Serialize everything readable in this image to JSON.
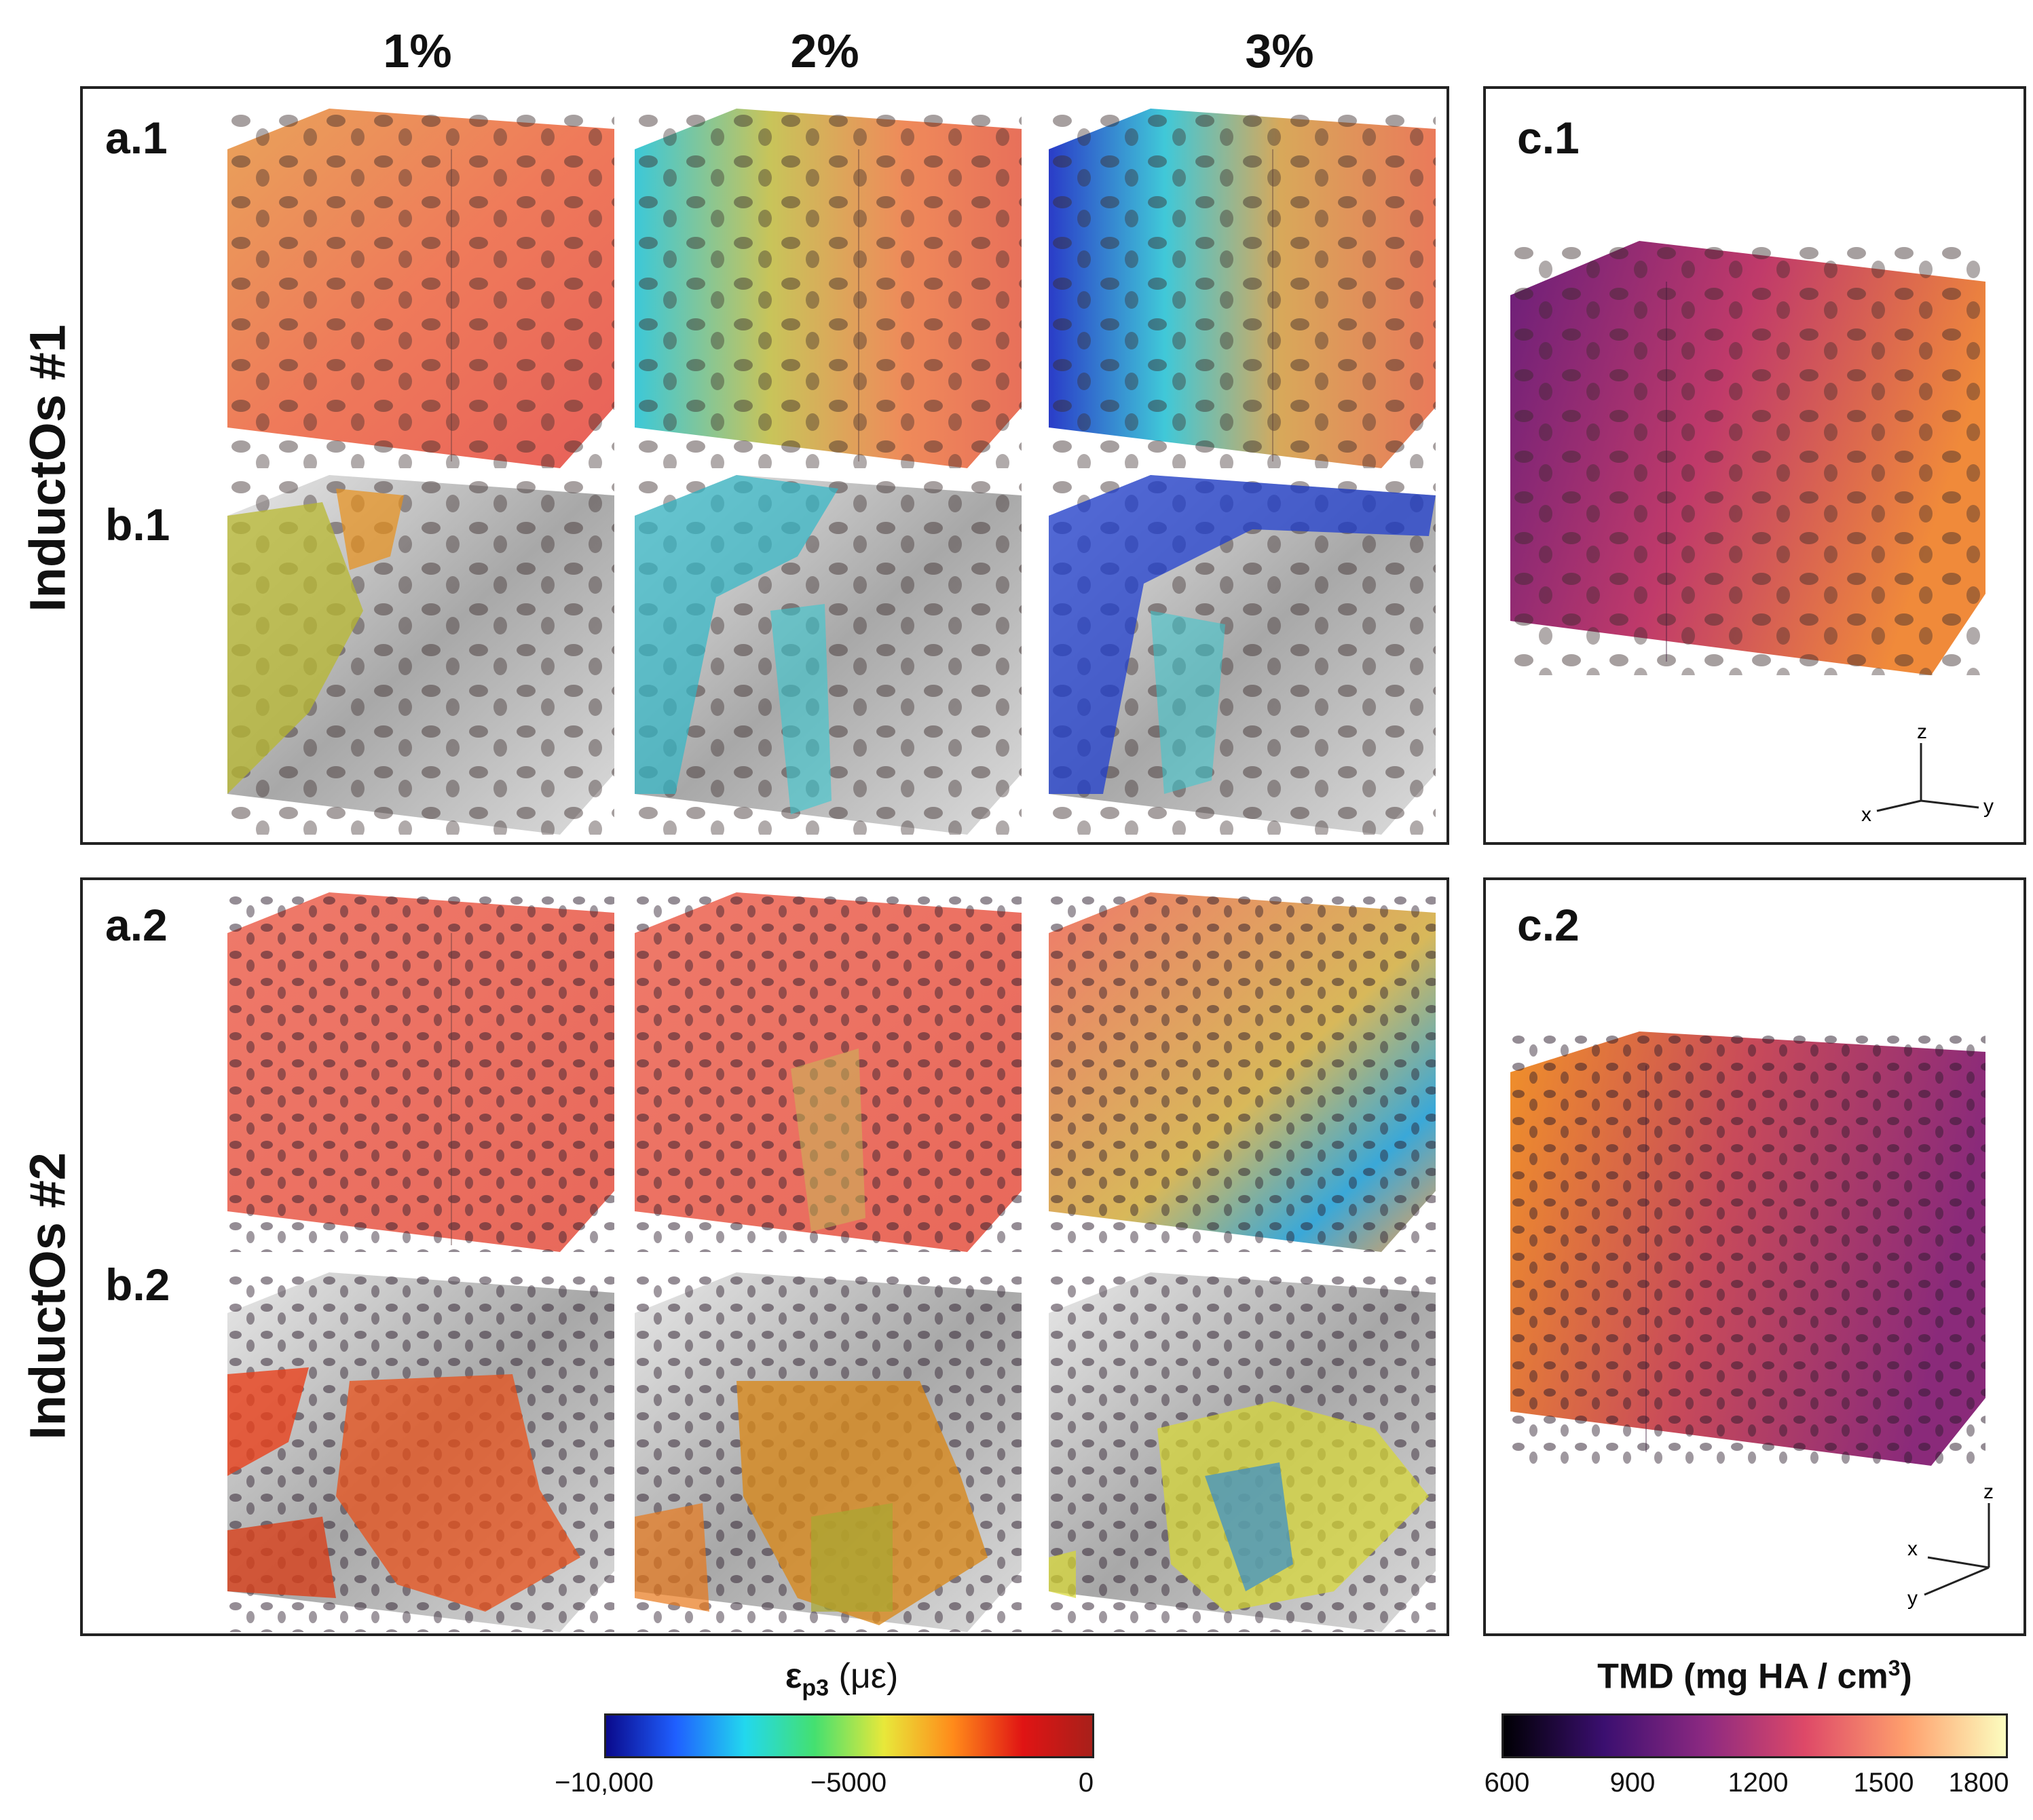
{
  "columns": [
    "1%",
    "2%",
    "3%"
  ],
  "rows": [
    "InductOs #1",
    "InductOs #2"
  ],
  "panels": {
    "a1": "a.1",
    "b1": "b.1",
    "c1": "c.1",
    "a2": "a.2",
    "b2": "b.2",
    "c2": "c.2"
  },
  "axes1": {
    "x": "x",
    "y": "y",
    "z": "z"
  },
  "axes2": {
    "x": "x",
    "y": "y",
    "z": "z"
  },
  "strain_colorbar": {
    "title_symbol": "ε",
    "title_subscript": "p3",
    "title_unit": "(με)",
    "ticks": [
      "−10,000",
      "−5000",
      "0"
    ],
    "colors": [
      "#0a0a8c",
      "#1f5fff",
      "#22d8ee",
      "#44e070",
      "#e8e83a",
      "#ff8a1a",
      "#e01414",
      "#a8201a"
    ]
  },
  "tmd_colorbar": {
    "title": "TMD (mg HA / cm",
    "title_sup": "3",
    "title_close": ")",
    "ticks": [
      "600",
      "900",
      "1200",
      "1500",
      "1800"
    ],
    "colors": [
      "#000004",
      "#3b0f70",
      "#8c2981",
      "#de4968",
      "#fe9f6d",
      "#fcfdbf"
    ]
  }
}
